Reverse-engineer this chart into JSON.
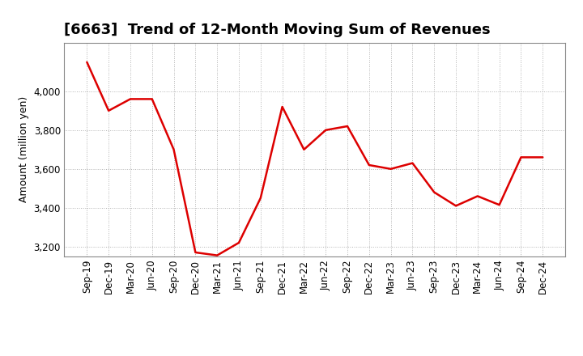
{
  "title": "[6663]  Trend of 12-Month Moving Sum of Revenues",
  "ylabel": "Amount (million yen)",
  "line_color": "#dd0000",
  "background_color": "#ffffff",
  "plot_bg_color": "#ffffff",
  "grid_color": "#aaaaaa",
  "x_labels": [
    "Sep-19",
    "Dec-19",
    "Mar-20",
    "Jun-20",
    "Sep-20",
    "Dec-20",
    "Mar-21",
    "Jun-21",
    "Sep-21",
    "Dec-21",
    "Mar-22",
    "Jun-22",
    "Sep-22",
    "Dec-22",
    "Mar-23",
    "Jun-23",
    "Sep-23",
    "Dec-23",
    "Mar-24",
    "Jun-24",
    "Sep-24",
    "Dec-24"
  ],
  "values": [
    4150,
    3900,
    3960,
    3960,
    3700,
    3170,
    3155,
    3220,
    3450,
    3920,
    3700,
    3800,
    3820,
    3620,
    3600,
    3630,
    3480,
    3410,
    3460,
    3415,
    3660,
    3660
  ],
  "ylim": [
    3150,
    4250
  ],
  "yticks": [
    3200,
    3400,
    3600,
    3800,
    4000
  ],
  "title_fontsize": 13,
  "title_fontweight": "bold",
  "axis_fontsize": 9,
  "tick_fontsize": 8.5
}
